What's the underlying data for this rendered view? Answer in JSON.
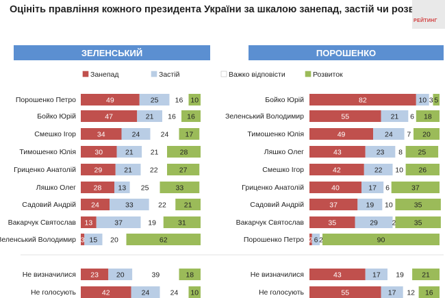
{
  "title": "Оцініть правління кожного президента України за шкалою занепад, застій чи розвиток?",
  "logo": "РЕЙТИНГ",
  "colors": {
    "decline": "#c0504d",
    "stagnation": "#b9cde5",
    "hard": "#ffffff",
    "development": "#9bbb59",
    "panel_header": "#5b8fd1"
  },
  "legend": [
    {
      "name": "Занепад",
      "color": "#c0504d"
    },
    {
      "name": "Застій",
      "color": "#b9cde5"
    },
    {
      "name": "Важко відповісти",
      "color": "#ffffff"
    },
    {
      "name": "Розвиток",
      "color": "#9bbb59"
    }
  ],
  "chart_data": [
    {
      "type": "bar",
      "stacked": true,
      "orientation": "horizontal",
      "title": "ЗЕЛЕНСЬКИЙ",
      "categories": [
        "Порошенко Петро",
        "Бойко Юрій",
        "Смешко Ігор",
        "Тимошенко Юлія",
        "Гриценко Анатолій",
        "Ляшко Олег",
        "Садовий Андрій",
        "Вакарчук Святослав",
        "Зеленський Володимир",
        "Не визначилися",
        "Не голосують"
      ],
      "series": [
        {
          "name": "Занепад",
          "values": [
            49,
            47,
            34,
            30,
            29,
            28,
            24,
            13,
            3,
            23,
            42
          ]
        },
        {
          "name": "Застій",
          "values": [
            25,
            21,
            24,
            21,
            21,
            13,
            33,
            37,
            15,
            20,
            24
          ]
        },
        {
          "name": "Важко відповісти",
          "values": [
            16,
            16,
            24,
            21,
            22,
            25,
            22,
            19,
            20,
            39,
            24
          ]
        },
        {
          "name": "Розвиток",
          "values": [
            10,
            16,
            17,
            28,
            27,
            33,
            21,
            31,
            62,
            18,
            10
          ]
        }
      ],
      "xlim": [
        0,
        100
      ]
    },
    {
      "type": "bar",
      "stacked": true,
      "orientation": "horizontal",
      "title": "ПОРОШЕНКО",
      "categories": [
        "Бойко Юрій",
        "Зеленський Володимир",
        "Тимошенко Юлія",
        "Ляшко Олег",
        "Смешко Ігор",
        "Гриценко Анатолій",
        "Садовий Андрій",
        "Вакарчук Святослав",
        "Порошенко Петро",
        "Не визначилися",
        "Не голосують"
      ],
      "series": [
        {
          "name": "Занепад",
          "values": [
            82,
            55,
            49,
            43,
            42,
            40,
            37,
            35,
            2,
            43,
            55
          ]
        },
        {
          "name": "Застій",
          "values": [
            10,
            21,
            24,
            23,
            22,
            17,
            19,
            29,
            6,
            17,
            17
          ]
        },
        {
          "name": "Важко відповісти",
          "values": [
            3,
            6,
            7,
            8,
            10,
            6,
            10,
            2,
            2,
            19,
            12
          ]
        },
        {
          "name": "Розвиток",
          "values": [
            5,
            18,
            20,
            25,
            26,
            37,
            35,
            35,
            90,
            21,
            16
          ]
        }
      ],
      "xlim": [
        0,
        100
      ]
    }
  ]
}
